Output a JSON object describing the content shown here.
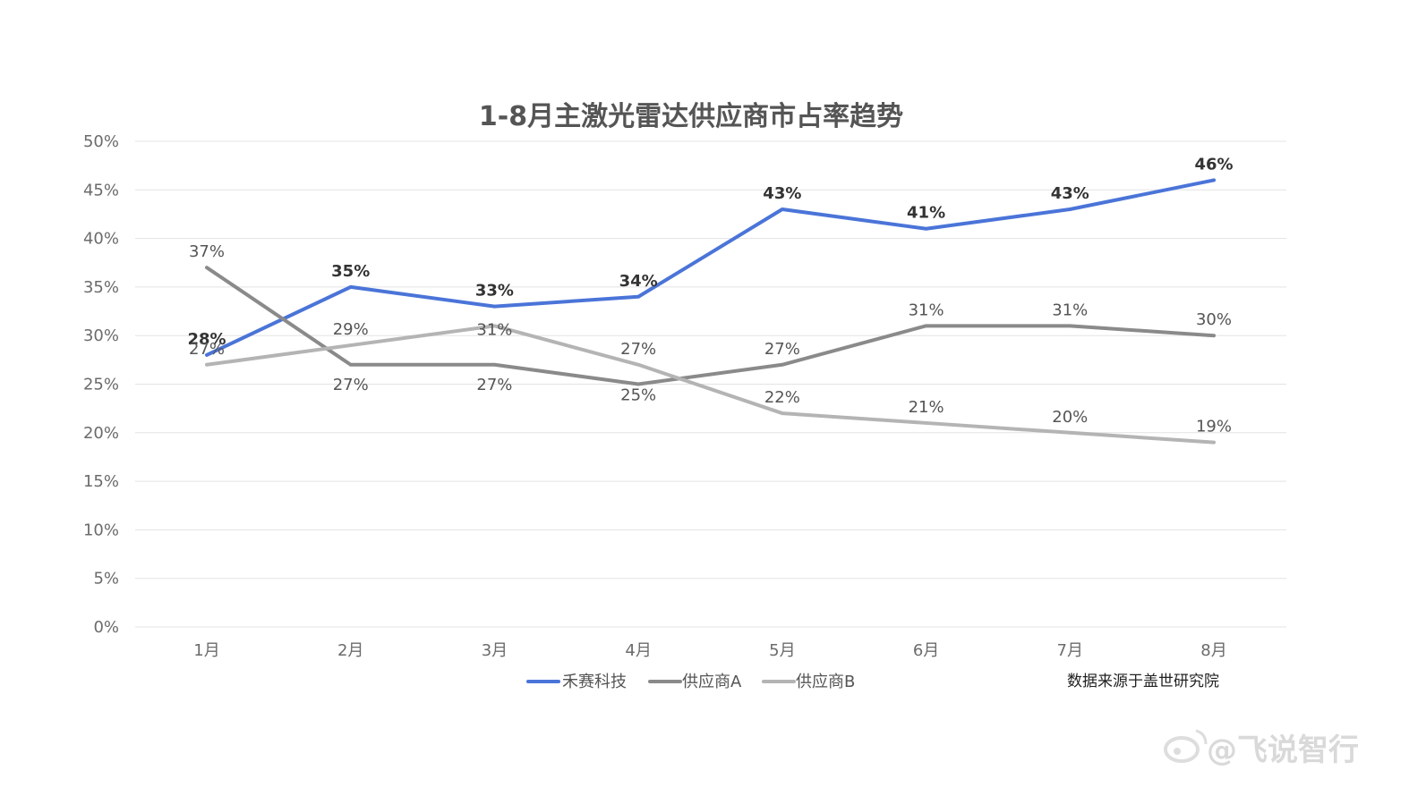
{
  "chart_data": {
    "type": "line",
    "title": "1-8月主激光雷达供应商市占率趋势",
    "categories": [
      "1月",
      "2月",
      "3月",
      "4月",
      "5月",
      "6月",
      "7月",
      "8月"
    ],
    "y_ticks": [
      "0%",
      "5%",
      "10%",
      "15%",
      "20%",
      "25%",
      "30%",
      "35%",
      "40%",
      "45%",
      "50%"
    ],
    "ylim": [
      0,
      50
    ],
    "grid": true,
    "legend_position": "bottom",
    "series": [
      {
        "name": "禾赛科技",
        "color": "#4a74d8",
        "values": [
          28,
          35,
          33,
          34,
          43,
          41,
          43,
          46
        ],
        "labels": [
          "28%",
          "35%",
          "33%",
          "34%",
          "43%",
          "41%",
          "43%",
          "46%"
        ],
        "label_style": "bold"
      },
      {
        "name": "供应商A",
        "color": "#8a8a8a",
        "values": [
          37,
          27,
          27,
          25,
          27,
          31,
          31,
          30
        ],
        "labels": [
          "37%",
          "27%",
          "27%",
          "25%",
          "27%",
          "31%",
          "31%",
          "30%"
        ],
        "label_style": "normal"
      },
      {
        "name": "供应商B",
        "color": "#b4b4b4",
        "values": [
          27,
          29,
          31,
          27,
          22,
          21,
          20,
          19
        ],
        "labels": [
          "27%",
          "29%",
          "31%",
          "27%",
          "22%",
          "21%",
          "20%",
          "19%"
        ],
        "label_style": "normal"
      }
    ]
  },
  "source_note": "数据来源于盖世研究院",
  "watermark": "@飞说智行"
}
